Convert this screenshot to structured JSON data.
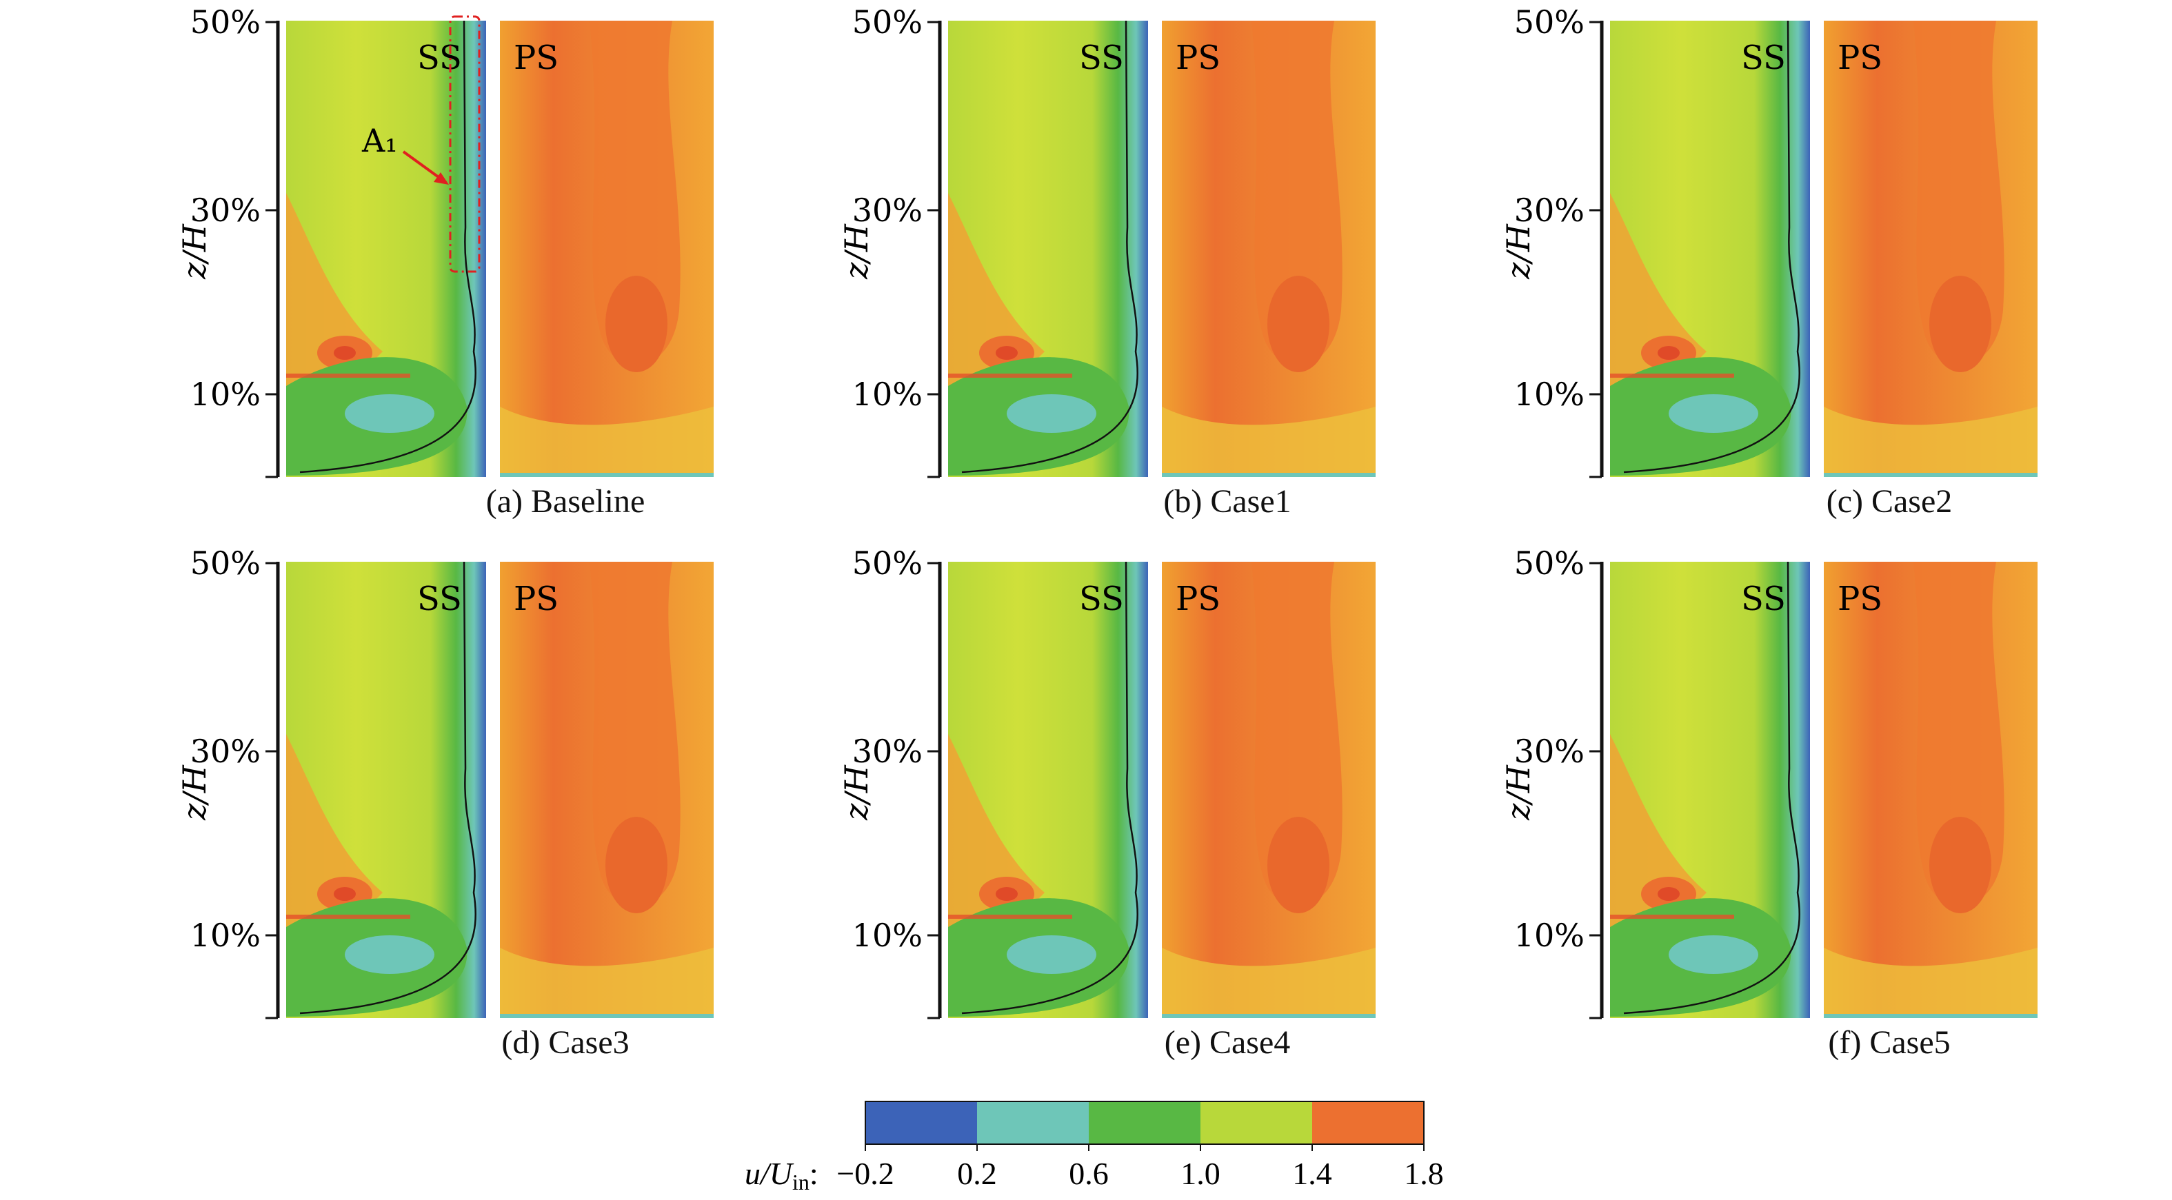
{
  "figure": {
    "panels": [
      {
        "id": "a",
        "caption": "(a) Baseline",
        "left_label": "SS",
        "right_label": "PS",
        "annotation": "A₁"
      },
      {
        "id": "b",
        "caption": "(b) Case1",
        "left_label": "SS",
        "right_label": "PS"
      },
      {
        "id": "c",
        "caption": "(c) Case2",
        "left_label": "SS",
        "right_label": "PS"
      },
      {
        "id": "d",
        "caption": "(d) Case3",
        "left_label": "SS",
        "right_label": "PS"
      },
      {
        "id": "e",
        "caption": "(e) Case4",
        "left_label": "SS",
        "right_label": "PS"
      },
      {
        "id": "f",
        "caption": "(f) Case5",
        "left_label": "SS",
        "right_label": "PS"
      }
    ],
    "y_ticks": [
      "50%",
      "30%",
      "10%"
    ],
    "y_axis_label": "z/H",
    "colorbar": {
      "label_var": "u/U",
      "label_sub": "in",
      "label_suffix": ":",
      "ticks": [
        "−0.2",
        "0.2",
        "0.6",
        "1.0",
        "1.4",
        "1.8"
      ],
      "colors": [
        "#3c63b8",
        "#6ec6b8",
        "#58b844",
        "#b8d83a",
        "#ec7030"
      ]
    }
  }
}
